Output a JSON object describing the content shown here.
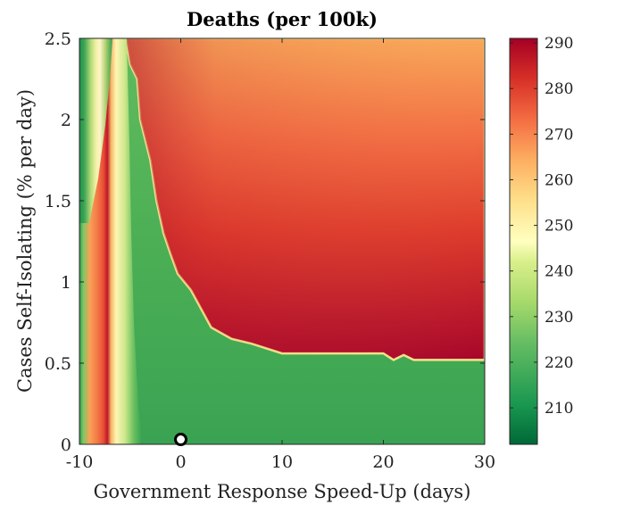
{
  "chart_data": {
    "type": "heatmap",
    "title": "Deaths (per 100k)",
    "xlabel": "Government Response Speed-Up (days)",
    "ylabel": "Cases Self-Isolating (% per day)",
    "xlim": [
      -10,
      30
    ],
    "ylim": [
      0,
      2.5
    ],
    "x_ticks": [
      "-10",
      "0",
      "10",
      "20",
      "30"
    ],
    "y_ticks": [
      "0",
      "0.5",
      "1",
      "1.5",
      "2",
      "2.5"
    ],
    "colorbar": {
      "range": [
        202,
        291
      ],
      "ticks": [
        "210",
        "220",
        "230",
        "240",
        "250",
        "260",
        "270",
        "280",
        "290"
      ],
      "colormap": "RdYlGn_reversed"
    },
    "regions": [
      {
        "name": "low-speedup-band",
        "x_range": [
          -10,
          -4
        ],
        "description_values": [
          210,
          290
        ]
      },
      {
        "name": "high-deaths-region",
        "approx_value_range": [
          260,
          291
        ]
      },
      {
        "name": "low-deaths-region",
        "approx_value_range": [
          210,
          225
        ]
      }
    ],
    "boundary": [
      [
        -5.4,
        2.5
      ],
      [
        -5.0,
        2.34
      ],
      [
        -4.3,
        2.25
      ],
      [
        -4.0,
        2.0
      ],
      [
        -3.0,
        1.75
      ],
      [
        -2.4,
        1.5
      ],
      [
        -1.7,
        1.3
      ],
      [
        -1.0,
        1.17
      ],
      [
        -0.3,
        1.05
      ],
      [
        1.0,
        0.95
      ],
      [
        3.0,
        0.72
      ],
      [
        5.0,
        0.65
      ],
      [
        7.0,
        0.62
      ],
      [
        10.0,
        0.56
      ],
      [
        20.0,
        0.56
      ],
      [
        21.0,
        0.52
      ],
      [
        22.0,
        0.55
      ],
      [
        23.0,
        0.52
      ],
      [
        24.0,
        0.52
      ],
      [
        30.0,
        0.52
      ]
    ],
    "marker": {
      "x": 0,
      "y": 0.03,
      "shape": "circle"
    }
  },
  "colors": {
    "low": "#006837",
    "mid": "#ffffbf",
    "high": "#a50026",
    "marker_edge": "#000000",
    "marker_fill": "#ffffff"
  }
}
